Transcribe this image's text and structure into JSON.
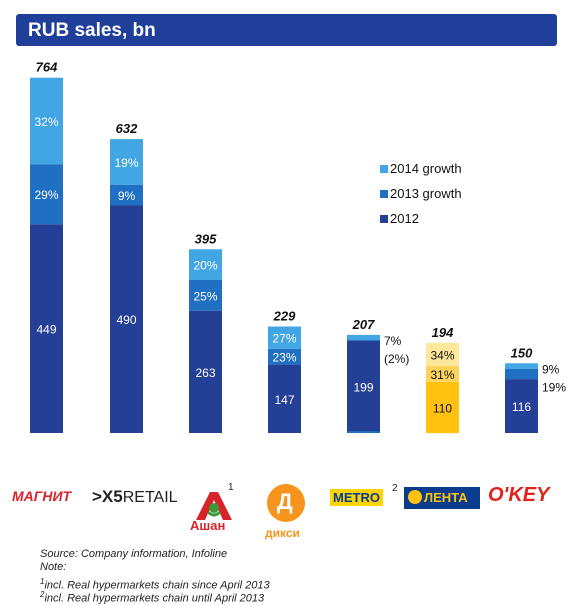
{
  "title": "RUB sales, bn",
  "colors": {
    "title_bg": "#1f3f9b",
    "base_2012": "#243f96",
    "growth_2013": "#1f6fc2",
    "growth_2014": "#42a6e4",
    "lenta_base": "#ffc20e",
    "lenta_mid": "#ffd35a",
    "lenta_top": "#ffe79c"
  },
  "chart_data": {
    "type": "bar",
    "stacked": true,
    "categories": [
      "Magnit",
      "X5 Retail",
      "Auchan",
      "Dixy",
      "Metro",
      "Lenta",
      "O'Key"
    ],
    "series": [
      {
        "name": "2012",
        "values": [
          449,
          490,
          263,
          147,
          199,
          110,
          116
        ],
        "labels": [
          "449",
          "490",
          "263",
          "147",
          "199",
          "110",
          "116"
        ]
      },
      {
        "name": "2013 growth",
        "values": [
          129,
          44,
          66,
          34,
          -4,
          34,
          22
        ],
        "labels": [
          "29%",
          "9%",
          "25%",
          "23%",
          "(2%)",
          "31%",
          "19%"
        ]
      },
      {
        "name": "2014 growth",
        "values": [
          186,
          98,
          66,
          48,
          12,
          50,
          12
        ],
        "labels": [
          "32%",
          "19%",
          "20%",
          "27%",
          "7%",
          "34%",
          "9%"
        ]
      }
    ],
    "totals": [
      "764",
      "632",
      "395",
      "229",
      "207",
      "194",
      "150"
    ],
    "legend_position": "right",
    "ylim": [
      0,
      800
    ]
  },
  "logos": {
    "magnit": "МАГНИТ",
    "x5_mark": ">X5",
    "x5_text": "RETAIL",
    "auchan_text": "Ашан",
    "auchan_sup": "1",
    "dixy": "дикси",
    "dixy_letter": "Д",
    "metro": "METRO",
    "metro_sup": "2",
    "lenta": "ЛЕНТА",
    "okey": "O'KEY"
  },
  "notes": {
    "source": "Source: Company information, Infoline",
    "note_label": "Note:",
    "note1_sup": "1",
    "note1": "incl. Real hypermarkets chain since April 2013",
    "note2_sup": "2",
    "note2": "incl. Real hypermarkets chain until April 2013"
  }
}
